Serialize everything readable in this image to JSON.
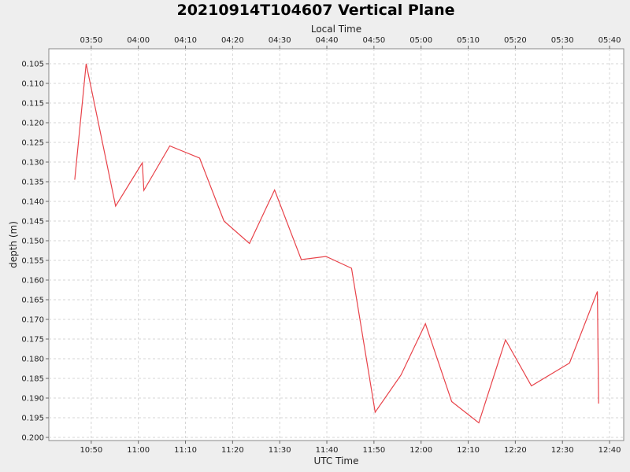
{
  "chart_data": {
    "type": "line",
    "title": "20210914T104607 Vertical Plane",
    "xlabel": "UTC Time",
    "x2label": "Local Time",
    "ylabel": "depth (m)",
    "y_inverted": true,
    "ylim": [
      0.1012,
      0.2008
    ],
    "xlim": [
      "10:41",
      "12:43"
    ],
    "x_ticks": [
      "10:50",
      "11:00",
      "11:10",
      "11:20",
      "11:30",
      "11:40",
      "11:50",
      "12:00",
      "12:10",
      "12:20",
      "12:30",
      "12:40"
    ],
    "x2_ticks": [
      "03:50",
      "04:00",
      "04:10",
      "04:20",
      "04:30",
      "04:40",
      "04:50",
      "05:00",
      "05:10",
      "05:20",
      "05:30",
      "05:40"
    ],
    "y_ticks": [
      "0.105",
      "0.110",
      "0.115",
      "0.120",
      "0.125",
      "0.130",
      "0.135",
      "0.140",
      "0.145",
      "0.150",
      "0.155",
      "0.160",
      "0.165",
      "0.170",
      "0.175",
      "0.180",
      "0.185",
      "0.190",
      "0.195",
      "0.200"
    ],
    "grid": true,
    "series": [
      {
        "color": "#e8434a",
        "points": [
          {
            "x": "10:46:30",
            "y": 0.1345
          },
          {
            "x": "10:48:55",
            "y": 0.105
          },
          {
            "x": "10:55:10",
            "y": 0.1412
          },
          {
            "x": "11:00:50",
            "y": 0.1302
          },
          {
            "x": "11:01:10",
            "y": 0.1372
          },
          {
            "x": "11:06:40",
            "y": 0.1259
          },
          {
            "x": "11:13:00",
            "y": 0.129
          },
          {
            "x": "11:18:10",
            "y": 0.145
          },
          {
            "x": "11:23:35",
            "y": 0.1507
          },
          {
            "x": "11:28:55",
            "y": 0.1371
          },
          {
            "x": "11:34:35",
            "y": 0.1548
          },
          {
            "x": "11:39:50",
            "y": 0.154
          },
          {
            "x": "11:45:15",
            "y": 0.157
          },
          {
            "x": "11:50:15",
            "y": 0.1936
          },
          {
            "x": "11:55:45",
            "y": 0.1841
          },
          {
            "x": "12:00:55",
            "y": 0.1711
          },
          {
            "x": "12:06:30",
            "y": 0.1909
          },
          {
            "x": "12:12:15",
            "y": 0.1963
          },
          {
            "x": "12:17:55",
            "y": 0.1752
          },
          {
            "x": "12:23:25",
            "y": 0.1869
          },
          {
            "x": "12:31:30",
            "y": 0.1811
          },
          {
            "x": "12:37:25",
            "y": 0.1629
          },
          {
            "x": "12:37:40",
            "y": 0.1914
          }
        ]
      }
    ]
  }
}
